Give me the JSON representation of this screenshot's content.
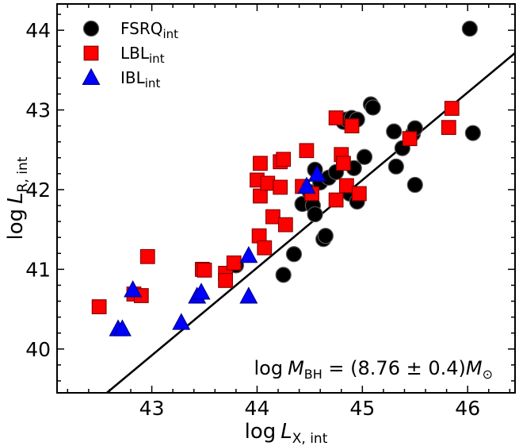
{
  "chart_data": {
    "type": "scatter",
    "title": "",
    "xlabel": "log L_X,int",
    "ylabel": "log L_R,int",
    "xlabel_main": "log",
    "xlabel_var": "L",
    "xlabel_sub": "X, int",
    "ylabel_main": "log",
    "ylabel_var": "L",
    "ylabel_sub": "R, int",
    "xlim": [
      42.1,
      46.45
    ],
    "ylim": [
      39.45,
      44.33
    ],
    "xticks": [
      43,
      44,
      45,
      46
    ],
    "yticks": [
      40,
      41,
      42,
      43,
      44
    ],
    "xtick_labels": [
      "43",
      "44",
      "45",
      "46"
    ],
    "ytick_labels": [
      "40",
      "41",
      "42",
      "43",
      "44"
    ],
    "legend_position": "top-left",
    "annotation": {
      "prefix": "log",
      "var": "M",
      "sub": "BH",
      "body": " = (8.76 ± 0.4)",
      "unit": "M",
      "unit_sub": "⊙"
    },
    "fit_line": {
      "slope": 1.1,
      "intercept": -7.38
    },
    "series": [
      {
        "name": "FSRQ",
        "name_sub": "int",
        "marker": "circle",
        "color": "#000000",
        "edge": "#555555",
        "points": [
          [
            43.8,
            41.05
          ],
          [
            44.25,
            40.93
          ],
          [
            44.35,
            41.19
          ],
          [
            44.43,
            41.82
          ],
          [
            44.5,
            41.97
          ],
          [
            44.53,
            41.8
          ],
          [
            44.55,
            42.25
          ],
          [
            44.6,
            42.09
          ],
          [
            44.55,
            41.69
          ],
          [
            44.63,
            41.38
          ],
          [
            44.65,
            41.42
          ],
          [
            44.68,
            42.15
          ],
          [
            44.75,
            42.22
          ],
          [
            44.82,
            42.85
          ],
          [
            44.85,
            42.88
          ],
          [
            44.88,
            41.95
          ],
          [
            44.9,
            42.9
          ],
          [
            44.92,
            42.27
          ],
          [
            44.95,
            42.88
          ],
          [
            44.95,
            41.85
          ],
          [
            45.02,
            42.41
          ],
          [
            45.08,
            43.07
          ],
          [
            45.1,
            43.03
          ],
          [
            45.3,
            42.73
          ],
          [
            45.32,
            42.29
          ],
          [
            45.38,
            42.52
          ],
          [
            45.48,
            42.7
          ],
          [
            45.5,
            42.77
          ],
          [
            45.5,
            42.06
          ],
          [
            46.02,
            44.02
          ],
          [
            46.05,
            42.71
          ]
        ]
      },
      {
        "name": "LBL",
        "name_sub": "int",
        "marker": "square",
        "color": "#ff0000",
        "edge": "#8b0000",
        "points": [
          [
            42.5,
            40.53
          ],
          [
            42.83,
            40.69
          ],
          [
            42.9,
            40.67
          ],
          [
            42.96,
            41.16
          ],
          [
            43.48,
            41.0
          ],
          [
            43.5,
            40.99
          ],
          [
            43.7,
            40.95
          ],
          [
            43.7,
            40.86
          ],
          [
            43.78,
            41.08
          ],
          [
            44.0,
            42.12
          ],
          [
            44.02,
            41.42
          ],
          [
            44.03,
            41.92
          ],
          [
            44.03,
            42.33
          ],
          [
            44.07,
            41.27
          ],
          [
            44.1,
            42.08
          ],
          [
            44.15,
            41.66
          ],
          [
            44.22,
            42.35
          ],
          [
            44.22,
            42.03
          ],
          [
            44.25,
            42.38
          ],
          [
            44.27,
            41.56
          ],
          [
            44.43,
            42.04
          ],
          [
            44.47,
            42.49
          ],
          [
            44.52,
            41.95
          ],
          [
            44.75,
            42.9
          ],
          [
            44.75,
            41.87
          ],
          [
            44.8,
            42.44
          ],
          [
            44.82,
            42.33
          ],
          [
            44.85,
            42.05
          ],
          [
            44.9,
            42.8
          ],
          [
            44.97,
            41.95
          ],
          [
            45.45,
            42.64
          ],
          [
            45.82,
            42.78
          ],
          [
            45.85,
            43.02
          ]
        ]
      },
      {
        "name": "IBL",
        "name_sub": "int",
        "marker": "triangle",
        "color": "#0000ff",
        "edge": "#00008b",
        "points": [
          [
            42.68,
            40.25
          ],
          [
            42.72,
            40.25
          ],
          [
            42.82,
            40.74
          ],
          [
            43.28,
            40.33
          ],
          [
            43.43,
            40.66
          ],
          [
            43.47,
            40.71
          ],
          [
            43.92,
            41.17
          ],
          [
            43.92,
            40.66
          ],
          [
            44.47,
            42.04
          ],
          [
            44.57,
            42.19
          ]
        ]
      }
    ]
  }
}
